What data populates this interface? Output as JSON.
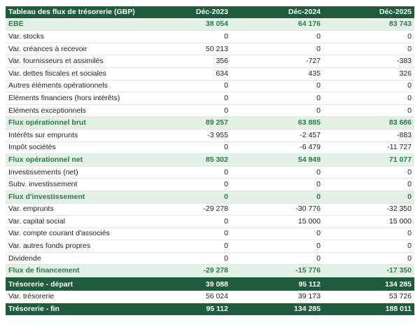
{
  "table": {
    "header": [
      "Tableau des flux de trésorerie (GBP)",
      "Déc-2023",
      "Déc-2024",
      "Déc-2025"
    ],
    "rows": [
      [
        "EBE",
        "38 054",
        "64 176",
        "83 743"
      ],
      [
        "Var. stocks",
        "0",
        "0",
        "0"
      ],
      [
        "Var. créances à recevoir",
        "50 213",
        "0",
        "0"
      ],
      [
        "Var. fournisseurs et assimilés",
        "356",
        "-727",
        "-383"
      ],
      [
        "Var. dettes fiscales et sociales",
        "634",
        "435",
        "326"
      ],
      [
        "Autres éléments opérationnels",
        "0",
        "0",
        "0"
      ],
      [
        "Eléments financiers (hors intérêts)",
        "0",
        "0",
        "0"
      ],
      [
        "Eléments exceptionnels",
        "0",
        "0",
        "0"
      ],
      [
        "Flux opérationnel brut",
        "89 257",
        "63 885",
        "83 686"
      ],
      [
        "Intérêts sur emprunts",
        "-3 955",
        "-2 457",
        "-883"
      ],
      [
        "Impôt sociétés",
        "0",
        "-6 479",
        "-11 727"
      ],
      [
        "Flux opérationnel net",
        "85 302",
        "54 949",
        "71 077"
      ],
      [
        "Investissements (net)",
        "0",
        "0",
        "0"
      ],
      [
        "Subv. investissement",
        "0",
        "0",
        "0"
      ],
      [
        "Flux d'investissement",
        "0",
        "0",
        "0"
      ],
      [
        "Var. emprunts",
        "-29 278",
        "-30 776",
        "-32 350"
      ],
      [
        "Var. capital social",
        "0",
        "15 000",
        "15 000"
      ],
      [
        "Var. compte courant d'associés",
        "0",
        "0",
        "0"
      ],
      [
        "Var. autres fonds propres",
        "0",
        "0",
        "0"
      ],
      [
        "Dividende",
        "0",
        "0",
        "0"
      ],
      [
        "Flux de financement",
        "-29 278",
        "-15 776",
        "-17 350"
      ],
      [
        "Var. trésorerie",
        "56 024",
        "39 173",
        "53 726"
      ]
    ]
  },
  "summary": {
    "rows": [
      [
        "Trésorerie - départ",
        "39 088",
        "95 112",
        "134 285"
      ],
      [
        "Var. trésorerie",
        "56 024",
        "39 173",
        "53 726"
      ],
      [
        "Trésorerie - fin",
        "95 112",
        "134 285",
        "188 011"
      ]
    ]
  }
}
